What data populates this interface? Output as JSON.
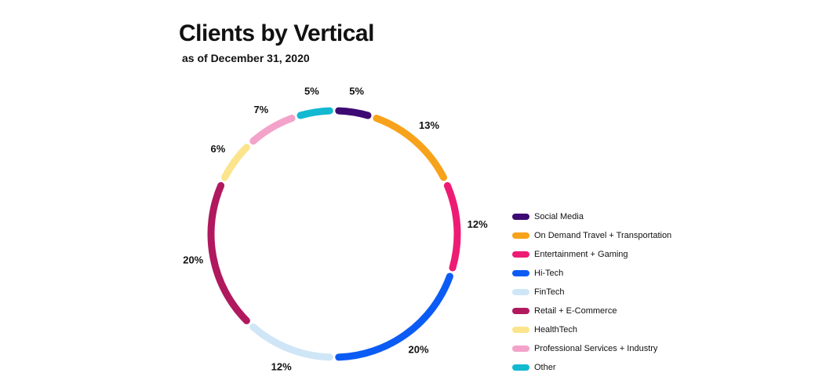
{
  "chart_data": {
    "type": "pie",
    "title": "Clients by Vertical",
    "subtitle": "as of December 31, 2020",
    "series": [
      {
        "name": "Social Media",
        "value": 5,
        "label": "5%",
        "color": "#3d0a73"
      },
      {
        "name": "On Demand Travel + Transportation",
        "value": 13,
        "label": "13%",
        "color": "#f7a21b"
      },
      {
        "name": "Entertainment + Gaming",
        "value": 12,
        "label": "12%",
        "color": "#ee1b74"
      },
      {
        "name": "Hi-Tech",
        "value": 20,
        "label": "20%",
        "color": "#0b5cf5"
      },
      {
        "name": "FinTech",
        "value": 12,
        "label": "12%",
        "color": "#cfe6f7"
      },
      {
        "name": "Retail + E-Commerce",
        "value": 20,
        "label": "20%",
        "color": "#b0195e"
      },
      {
        "name": "HealthTech",
        "value": 6,
        "label": "6%",
        "color": "#fbe48c"
      },
      {
        "name": "Professional Services + Industry",
        "value": 7,
        "label": "7%",
        "color": "#f3a3c9"
      },
      {
        "name": "Other",
        "value": 5,
        "label": "5%",
        "color": "#13b8d1"
      }
    ],
    "legend_position": "right"
  }
}
